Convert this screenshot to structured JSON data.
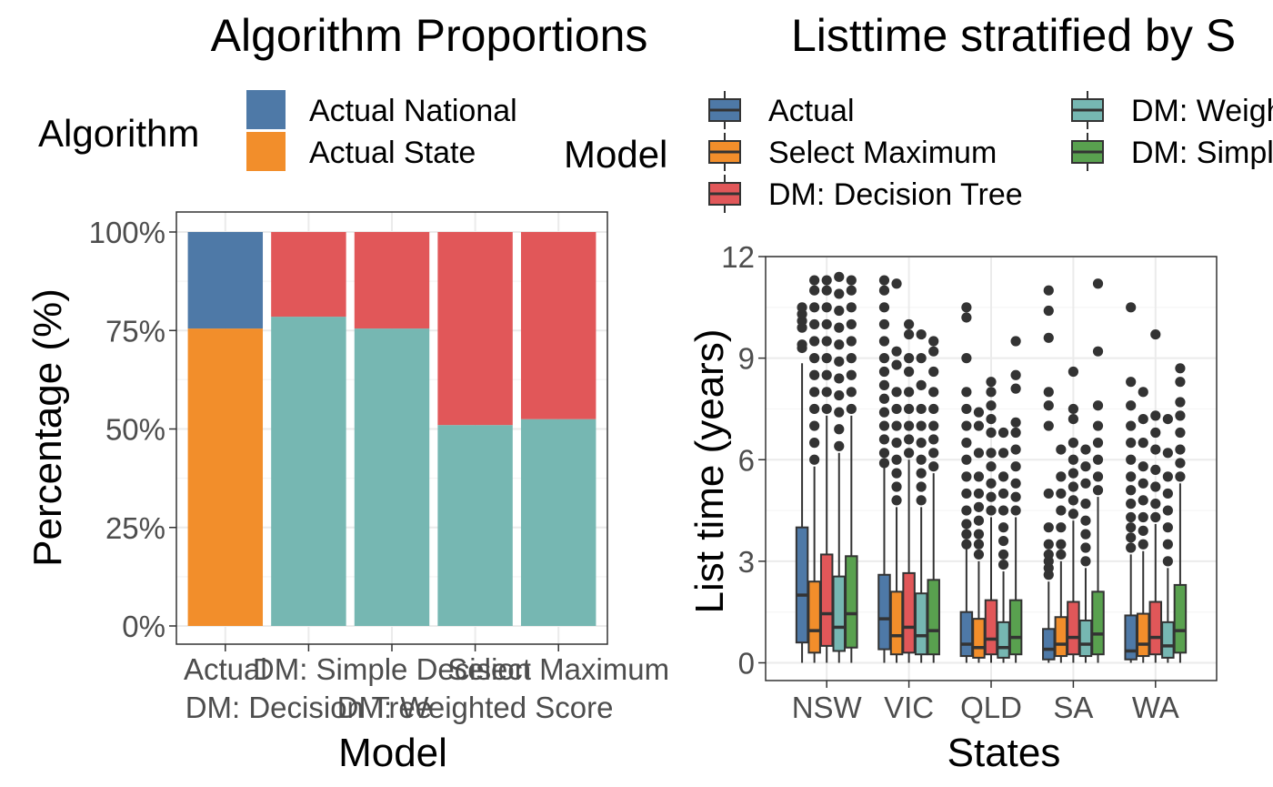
{
  "chart_data": [
    {
      "type": "bar",
      "title": "Algorithm Proportions",
      "xlabel": "Model",
      "ylabel": "Percentage (%)",
      "ylim": [
        0,
        100
      ],
      "yticks": [
        "0%",
        "25%",
        "50%",
        "75%",
        "100%"
      ],
      "categories": [
        "Actual",
        "DM: Decision Tree",
        "DM: Simple Decision",
        "DM: Weighted Score",
        "Select Maximum"
      ],
      "legend": {
        "title": "Algorithm",
        "position": "top"
      },
      "series": [
        {
          "name": "Actual State",
          "color": "#F28E2B",
          "values": [
            75.5,
            0,
            0,
            0,
            0
          ]
        },
        {
          "name": "",
          "color": "#76B7B2",
          "values": [
            0,
            78.5,
            75.5,
            51,
            52.5
          ]
        },
        {
          "name": "",
          "color": "#E15759",
          "values": [
            0,
            21.5,
            24.5,
            49,
            47.5
          ]
        },
        {
          "name": "Actual National",
          "color": "#4E79A7",
          "values": [
            24.5,
            0,
            0,
            0,
            0
          ]
        }
      ]
    },
    {
      "type": "boxplot",
      "title": "Listtime stratified by S",
      "xlabel": "States",
      "ylabel": "List time (years)",
      "ylim": [
        -0.5,
        12
      ],
      "yticks": [
        0,
        3,
        6,
        9,
        12
      ],
      "categories": [
        "NSW",
        "VIC",
        "QLD",
        "SA",
        "WA"
      ],
      "legend": {
        "title": "Model",
        "position": "top"
      },
      "series": [
        {
          "name": "Actual",
          "color": "#4E79A7",
          "boxes": [
            {
              "min": 0,
              "q1": 0.6,
              "median": 2.0,
              "q3": 4.0,
              "max": 8.85,
              "outliers": [
                9.3,
                9.4,
                9.9,
                10.1,
                10.3,
                10.5
              ]
            },
            {
              "min": 0,
              "q1": 0.4,
              "median": 1.3,
              "q3": 2.6,
              "max": 5.8,
              "outliers": [
                5.9,
                6.2,
                6.6,
                7.0,
                7.4,
                7.8,
                8.2,
                8.6,
                9.0,
                9.5,
                10.0,
                10.5,
                11.0,
                11.3
              ]
            },
            {
              "min": 0,
              "q1": 0.2,
              "median": 0.55,
              "q3": 1.5,
              "max": 3.4,
              "outliers": [
                3.5,
                3.8,
                4.1,
                4.5,
                5.0,
                5.5,
                6.0,
                6.5,
                7.0,
                7.5,
                8.0,
                9.0,
                10.2,
                10.5
              ]
            },
            {
              "min": 0,
              "q1": 0.1,
              "median": 0.4,
              "q3": 1.0,
              "max": 2.4,
              "outliers": [
                2.6,
                2.8,
                3.0,
                3.2,
                3.5,
                4.0,
                5.0,
                7.0,
                7.6,
                8.0,
                9.6,
                10.4,
                11.0
              ]
            },
            {
              "min": 0,
              "q1": 0.1,
              "median": 0.35,
              "q3": 1.4,
              "max": 3.2,
              "outliers": [
                3.4,
                3.7,
                4.0,
                4.3,
                4.7,
                5.1,
                5.5,
                6.0,
                6.5,
                7.0,
                7.6,
                8.3,
                10.5
              ]
            }
          ]
        },
        {
          "name": "Select Maximum",
          "color": "#F28E2B",
          "boxes": [
            {
              "min": 0,
              "q1": 0.3,
              "median": 0.95,
              "q3": 2.4,
              "max": 5.8,
              "outliers": [
                6.0,
                6.5,
                7.0,
                7.5,
                8.0,
                8.5,
                9.0,
                9.5,
                10.0,
                10.5,
                11.0,
                11.3
              ]
            },
            {
              "min": 0,
              "q1": 0.25,
              "median": 0.8,
              "q3": 2.1,
              "max": 4.6,
              "outliers": [
                4.8,
                5.2,
                5.6,
                6.0,
                6.5,
                7.0,
                7.5,
                8.0,
                8.8,
                9.2,
                11.2
              ]
            },
            {
              "min": 0,
              "q1": 0.15,
              "median": 0.45,
              "q3": 1.3,
              "max": 3.0,
              "outliers": [
                3.2,
                3.5,
                3.8,
                4.2,
                4.6,
                5.0,
                5.5,
                6.2,
                7.0,
                7.4
              ]
            },
            {
              "min": 0,
              "q1": 0.2,
              "median": 0.55,
              "q3": 1.35,
              "max": 3.0,
              "outliers": [
                3.2,
                3.5,
                4.0,
                4.5,
                5.0,
                5.5,
                6.3
              ]
            },
            {
              "min": 0,
              "q1": 0.2,
              "median": 0.55,
              "q3": 1.45,
              "max": 3.3,
              "outliers": [
                3.5,
                3.9,
                4.3,
                4.8,
                5.3,
                5.8,
                6.5,
                7.2,
                8.0
              ]
            }
          ]
        },
        {
          "name": "DM: Decision Tree",
          "color": "#E15759",
          "boxes": [
            {
              "min": 0,
              "q1": 0.5,
              "median": 1.45,
              "q3": 3.2,
              "max": 7.3,
              "outliers": [
                7.5,
                8.0,
                8.5,
                9.0,
                9.5,
                10.0,
                10.5,
                11.0,
                11.3
              ]
            },
            {
              "min": 0,
              "q1": 0.3,
              "median": 1.05,
              "q3": 2.65,
              "max": 6.0,
              "outliers": [
                6.2,
                6.6,
                7.0,
                7.5,
                8.0,
                8.6,
                9.0,
                9.7,
                10.0
              ]
            },
            {
              "min": 0,
              "q1": 0.25,
              "median": 0.7,
              "q3": 1.85,
              "max": 4.3,
              "outliers": [
                4.5,
                4.9,
                5.3,
                5.8,
                6.2,
                6.8,
                7.2,
                7.6,
                8.0,
                8.3
              ]
            },
            {
              "min": 0,
              "q1": 0.25,
              "median": 0.75,
              "q3": 1.8,
              "max": 4.2,
              "outliers": [
                4.4,
                4.8,
                5.2,
                5.6,
                6.0,
                6.5,
                7.2,
                7.5,
                8.6
              ]
            },
            {
              "min": 0,
              "q1": 0.25,
              "median": 0.75,
              "q3": 1.8,
              "max": 4.1,
              "outliers": [
                4.3,
                4.7,
                5.2,
                5.7,
                6.3,
                6.8,
                7.3,
                9.7
              ]
            }
          ]
        },
        {
          "name": "DM: Weighted Score",
          "color": "#76B7B2",
          "boxes": [
            {
              "min": 0,
              "q1": 0.35,
              "median": 1.05,
              "q3": 2.55,
              "max": 6.2,
              "outliers": [
                6.4,
                6.9,
                7.4,
                7.9,
                8.4,
                8.9,
                9.4,
                9.9,
                10.4,
                10.9,
                11.4
              ]
            },
            {
              "min": 0,
              "q1": 0.25,
              "median": 0.8,
              "q3": 2.05,
              "max": 4.6,
              "outliers": [
                4.8,
                5.2,
                5.6,
                6.0,
                6.5,
                7.0,
                7.5,
                8.2,
                9.0,
                9.7
              ]
            },
            {
              "min": 0,
              "q1": 0.15,
              "median": 0.45,
              "q3": 1.2,
              "max": 2.7,
              "outliers": [
                2.9,
                3.2,
                3.6,
                4.0,
                4.5,
                5.0,
                5.5,
                6.2,
                6.8
              ]
            },
            {
              "min": 0,
              "q1": 0.2,
              "median": 0.55,
              "q3": 1.25,
              "max": 2.8,
              "outliers": [
                3.0,
                3.4,
                3.8,
                4.2,
                4.7,
                5.3,
                5.8,
                6.3
              ]
            },
            {
              "min": 0,
              "q1": 0.15,
              "median": 0.5,
              "q3": 1.2,
              "max": 2.8,
              "outliers": [
                3.0,
                3.5,
                4.0,
                4.5,
                5.0,
                5.5,
                6.2,
                7.2
              ]
            }
          ]
        },
        {
          "name": "DM: Simple Decision",
          "color": "#59A14F",
          "boxes": [
            {
              "min": 0,
              "q1": 0.45,
              "median": 1.45,
              "q3": 3.15,
              "max": 7.3,
              "outliers": [
                7.5,
                8.0,
                8.5,
                9.0,
                9.5,
                10.0,
                10.5,
                11.0,
                11.3
              ]
            },
            {
              "min": 0,
              "q1": 0.25,
              "median": 0.95,
              "q3": 2.45,
              "max": 5.6,
              "outliers": [
                5.8,
                6.2,
                6.6,
                7.0,
                7.5,
                8.0,
                8.6,
                9.2,
                9.5
              ]
            },
            {
              "min": 0,
              "q1": 0.25,
              "median": 0.75,
              "q3": 1.85,
              "max": 4.3,
              "outliers": [
                4.5,
                4.9,
                5.3,
                5.8,
                6.3,
                6.8,
                7.1,
                8.1,
                8.5,
                9.5
              ]
            },
            {
              "min": 0,
              "q1": 0.25,
              "median": 0.85,
              "q3": 2.1,
              "max": 4.9,
              "outliers": [
                5.1,
                5.5,
                6.0,
                6.5,
                7.0,
                7.6,
                9.2,
                11.2
              ]
            },
            {
              "min": 0,
              "q1": 0.3,
              "median": 0.95,
              "q3": 2.3,
              "max": 5.3,
              "outliers": [
                5.5,
                5.9,
                6.3,
                6.8,
                7.3,
                7.7,
                8.3,
                8.7
              ]
            }
          ]
        }
      ]
    }
  ]
}
